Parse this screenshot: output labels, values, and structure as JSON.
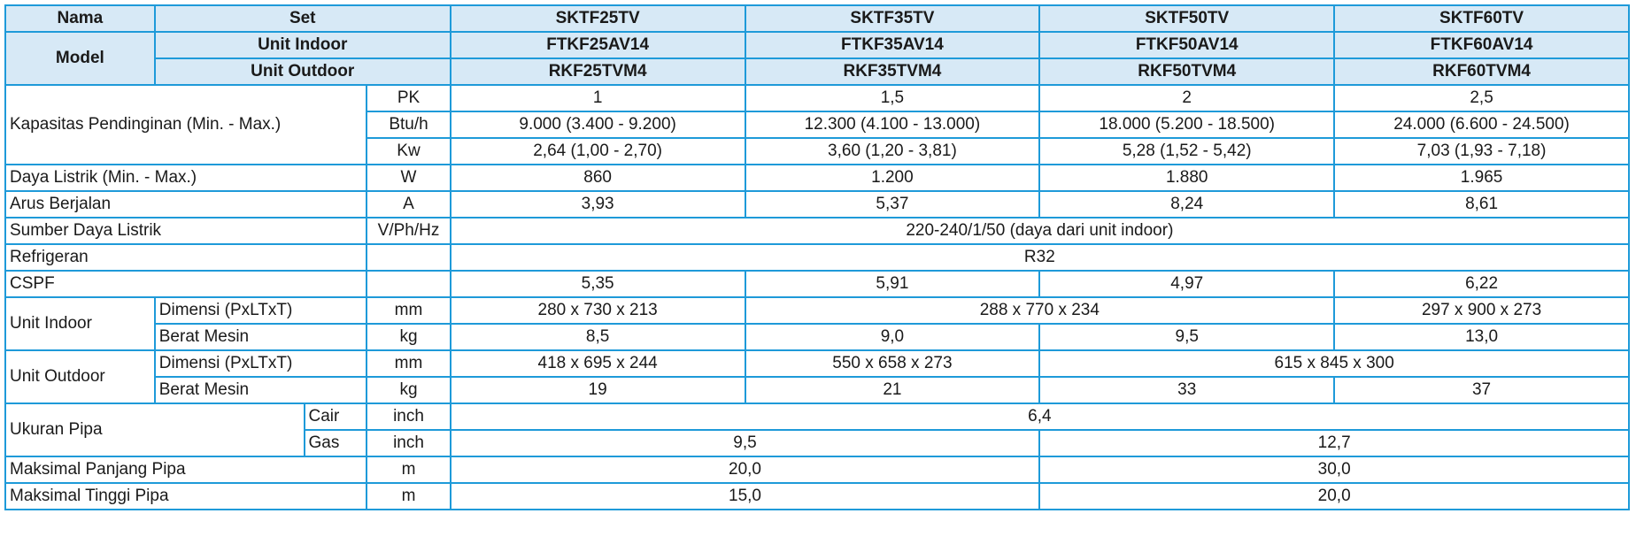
{
  "header": {
    "nama_label": "Nama",
    "model_label": "Model",
    "set_label": "Set",
    "unit_indoor_label": "Unit Indoor",
    "unit_outdoor_label": "Unit Outdoor",
    "sets": [
      "SKTF25TV",
      "SKTF35TV",
      "SKTF50TV",
      "SKTF60TV"
    ],
    "indoor_models": [
      "FTKF25AV14",
      "FTKF35AV14",
      "FTKF50AV14",
      "FTKF60AV14"
    ],
    "outdoor_models": [
      "RKF25TVM4",
      "RKF35TVM4",
      "RKF50TVM4",
      "RKF60TVM4"
    ]
  },
  "rows": {
    "kapasitas": {
      "label": "Kapasitas Pendinginan (Min. - Max.)",
      "pk": {
        "unit": "PK",
        "values": [
          "1",
          "1,5",
          "2",
          "2,5"
        ]
      },
      "btu": {
        "unit": "Btu/h",
        "values": [
          "9.000 (3.400 - 9.200)",
          "12.300 (4.100 - 13.000)",
          "18.000 (5.200 - 18.500)",
          "24.000 (6.600 - 24.500)"
        ]
      },
      "kw": {
        "unit": "Kw",
        "values": [
          "2,64 (1,00 - 2,70)",
          "3,60 (1,20 - 3,81)",
          "5,28 (1,52 - 5,42)",
          "7,03 (1,93 - 7,18)"
        ]
      }
    },
    "daya": {
      "label": "Daya Listrik (Min. - Max.)",
      "unit": "W",
      "values": [
        "860",
        "1.200",
        "1.880",
        "1.965"
      ]
    },
    "arus": {
      "label": "Arus Berjalan",
      "unit": "A",
      "values": [
        "3,93",
        "5,37",
        "8,24",
        "8,61"
      ]
    },
    "sumber": {
      "label": "Sumber Daya Listrik",
      "unit": "V/Ph/Hz",
      "value": "220-240/1/50 (daya dari unit indoor)"
    },
    "refrigeran": {
      "label": "Refrigeran",
      "value": "R32"
    },
    "cspf": {
      "label": "CSPF",
      "values": [
        "5,35",
        "5,91",
        "4,97",
        "6,22"
      ]
    },
    "unit_indoor": {
      "label": "Unit Indoor",
      "dimensi": {
        "label": "Dimensi (PxLTxT)",
        "unit": "mm",
        "v1": "280 x 730 x 213",
        "v23": "288 x 770 x 234",
        "v4": "297 x 900 x 273"
      },
      "berat": {
        "label": "Berat Mesin",
        "unit": "kg",
        "values": [
          "8,5",
          "9,0",
          "9,5",
          "13,0"
        ]
      }
    },
    "unit_outdoor": {
      "label": "Unit Outdoor",
      "dimensi": {
        "label": "Dimensi (PxLTxT)",
        "unit": "mm",
        "v1": "418 x 695 x 244",
        "v2": "550 x 658 x 273",
        "v34": "615 x 845 x 300"
      },
      "berat": {
        "label": "Berat Mesin",
        "unit": "kg",
        "values": [
          "19",
          "21",
          "33",
          "37"
        ]
      }
    },
    "ukuran_pipa": {
      "label": "Ukuran Pipa",
      "cair": {
        "label": "Cair",
        "unit": "inch",
        "value": "6,4"
      },
      "gas": {
        "label": "Gas",
        "unit": "inch",
        "v12": "9,5",
        "v34": "12,7"
      }
    },
    "panjang_pipa": {
      "label": "Maksimal Panjang Pipa",
      "unit": "m",
      "v12": "20,0",
      "v34": "30,0"
    },
    "tinggi_pipa": {
      "label": "Maksimal Tinggi Pipa",
      "unit": "m",
      "v12": "15,0",
      "v34": "20,0"
    }
  }
}
